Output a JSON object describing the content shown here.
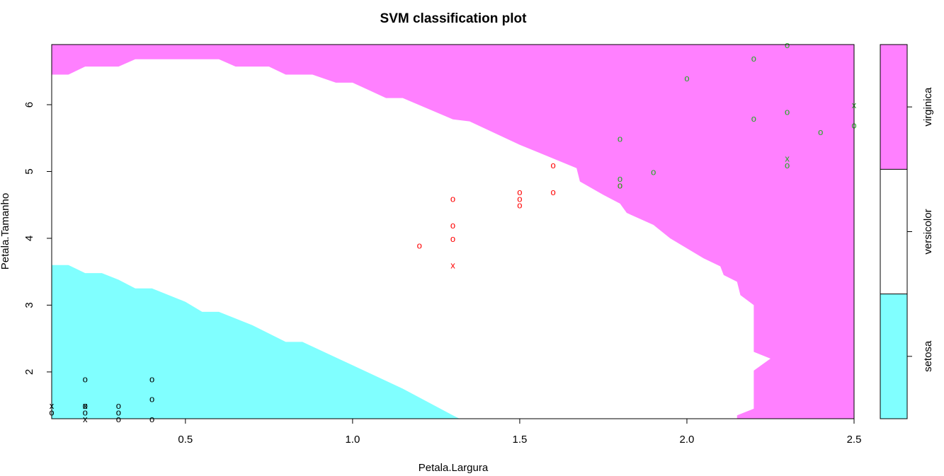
{
  "chart_data": {
    "type": "scatter",
    "title": "SVM classification plot",
    "xlabel": "Petala.Largura",
    "ylabel": "Petala.Tamanho",
    "xlim": [
      0.1,
      2.5
    ],
    "ylim": [
      1.3,
      6.9
    ],
    "x_ticks": [
      "0.5",
      "1.0",
      "1.5",
      "2.0",
      "2.5"
    ],
    "y_ticks": [
      "2",
      "3",
      "4",
      "5",
      "6"
    ],
    "grid": false,
    "legend_position": "right",
    "classes": [
      {
        "name": "setosa",
        "region_color": "#80ffff",
        "point_color": "#000000"
      },
      {
        "name": "versicolor",
        "region_color": "#ffffff",
        "point_color": "#ff0000"
      },
      {
        "name": "virginica",
        "region_color": "#ff80ff",
        "point_color": "#22aa22"
      }
    ],
    "decision_boundaries": {
      "setosa_upper": [
        [
          0.1,
          3.6
        ],
        [
          0.15,
          3.6
        ],
        [
          0.2,
          3.48
        ],
        [
          0.25,
          3.48
        ],
        [
          0.3,
          3.38
        ],
        [
          0.35,
          3.25
        ],
        [
          0.4,
          3.25
        ],
        [
          0.5,
          3.05
        ],
        [
          0.55,
          2.9
        ],
        [
          0.6,
          2.9
        ],
        [
          0.7,
          2.7
        ],
        [
          0.8,
          2.45
        ],
        [
          0.85,
          2.45
        ],
        [
          1.0,
          2.1
        ],
        [
          1.15,
          1.75
        ],
        [
          1.3,
          1.35
        ],
        [
          1.32,
          1.3
        ]
      ],
      "virginica_lower": [
        [
          0.1,
          6.45
        ],
        [
          0.15,
          6.45
        ],
        [
          0.2,
          6.57
        ],
        [
          0.3,
          6.57
        ],
        [
          0.35,
          6.68
        ],
        [
          0.6,
          6.68
        ],
        [
          0.65,
          6.57
        ],
        [
          0.75,
          6.57
        ],
        [
          0.8,
          6.45
        ],
        [
          0.88,
          6.45
        ],
        [
          0.95,
          6.33
        ],
        [
          1.0,
          6.33
        ],
        [
          1.1,
          6.1
        ],
        [
          1.15,
          6.1
        ],
        [
          1.3,
          5.78
        ],
        [
          1.35,
          5.75
        ],
        [
          1.5,
          5.4
        ],
        [
          1.67,
          5.05
        ],
        [
          1.68,
          4.85
        ],
        [
          1.75,
          4.65
        ],
        [
          1.8,
          4.52
        ],
        [
          1.82,
          4.38
        ],
        [
          1.9,
          4.2
        ],
        [
          1.95,
          4.0
        ],
        [
          2.0,
          3.85
        ],
        [
          2.05,
          3.7
        ],
        [
          2.1,
          3.58
        ],
        [
          2.11,
          3.45
        ],
        [
          2.15,
          3.35
        ],
        [
          2.16,
          3.15
        ],
        [
          2.2,
          3.0
        ],
        [
          2.2,
          2.3
        ],
        [
          2.25,
          2.2
        ],
        [
          2.2,
          2.02
        ],
        [
          2.2,
          1.45
        ],
        [
          2.15,
          1.35
        ],
        [
          2.15,
          1.3
        ]
      ]
    },
    "points": [
      {
        "x": 0.1,
        "y": 1.4,
        "cls": 0,
        "m": "o"
      },
      {
        "x": 0.1,
        "y": 1.5,
        "cls": 0,
        "m": "x"
      },
      {
        "x": 0.2,
        "y": 1.9,
        "cls": 0,
        "m": "o"
      },
      {
        "x": 0.2,
        "y": 1.5,
        "cls": 0,
        "m": "o"
      },
      {
        "x": 0.2,
        "y": 1.5,
        "cls": 0,
        "m": "x"
      },
      {
        "x": 0.2,
        "y": 1.4,
        "cls": 0,
        "m": "o"
      },
      {
        "x": 0.2,
        "y": 1.3,
        "cls": 0,
        "m": "x"
      },
      {
        "x": 0.3,
        "y": 1.5,
        "cls": 0,
        "m": "o"
      },
      {
        "x": 0.3,
        "y": 1.4,
        "cls": 0,
        "m": "o"
      },
      {
        "x": 0.3,
        "y": 1.3,
        "cls": 0,
        "m": "o"
      },
      {
        "x": 0.4,
        "y": 1.9,
        "cls": 0,
        "m": "o"
      },
      {
        "x": 0.4,
        "y": 1.6,
        "cls": 0,
        "m": "o"
      },
      {
        "x": 0.4,
        "y": 1.3,
        "cls": 0,
        "m": "o"
      },
      {
        "x": 1.2,
        "y": 3.9,
        "cls": 1,
        "m": "o"
      },
      {
        "x": 1.3,
        "y": 4.6,
        "cls": 1,
        "m": "o"
      },
      {
        "x": 1.3,
        "y": 4.2,
        "cls": 1,
        "m": "o"
      },
      {
        "x": 1.3,
        "y": 4.0,
        "cls": 1,
        "m": "o"
      },
      {
        "x": 1.3,
        "y": 3.6,
        "cls": 1,
        "m": "x"
      },
      {
        "x": 1.5,
        "y": 4.7,
        "cls": 1,
        "m": "o"
      },
      {
        "x": 1.5,
        "y": 4.6,
        "cls": 1,
        "m": "o"
      },
      {
        "x": 1.5,
        "y": 4.5,
        "cls": 1,
        "m": "o"
      },
      {
        "x": 1.6,
        "y": 5.1,
        "cls": 1,
        "m": "o"
      },
      {
        "x": 1.6,
        "y": 4.7,
        "cls": 1,
        "m": "o"
      },
      {
        "x": 1.8,
        "y": 4.8,
        "cls": 1,
        "m": "o"
      },
      {
        "x": 1.8,
        "y": 5.5,
        "cls": 2,
        "m": "o"
      },
      {
        "x": 1.8,
        "y": 4.9,
        "cls": 2,
        "m": "o"
      },
      {
        "x": 1.8,
        "y": 4.8,
        "cls": 2,
        "m": "o"
      },
      {
        "x": 1.9,
        "y": 5.0,
        "cls": 2,
        "m": "o"
      },
      {
        "x": 2.0,
        "y": 6.4,
        "cls": 2,
        "m": "o"
      },
      {
        "x": 2.2,
        "y": 6.7,
        "cls": 2,
        "m": "o"
      },
      {
        "x": 2.2,
        "y": 5.8,
        "cls": 2,
        "m": "o"
      },
      {
        "x": 2.3,
        "y": 6.9,
        "cls": 2,
        "m": "o"
      },
      {
        "x": 2.3,
        "y": 5.9,
        "cls": 2,
        "m": "o"
      },
      {
        "x": 2.3,
        "y": 5.2,
        "cls": 2,
        "m": "x"
      },
      {
        "x": 2.3,
        "y": 5.1,
        "cls": 2,
        "m": "o"
      },
      {
        "x": 2.4,
        "y": 5.6,
        "cls": 2,
        "m": "o"
      },
      {
        "x": 2.5,
        "y": 6.0,
        "cls": 2,
        "m": "x"
      },
      {
        "x": 2.5,
        "y": 5.7,
        "cls": 2,
        "m": "o"
      }
    ]
  }
}
